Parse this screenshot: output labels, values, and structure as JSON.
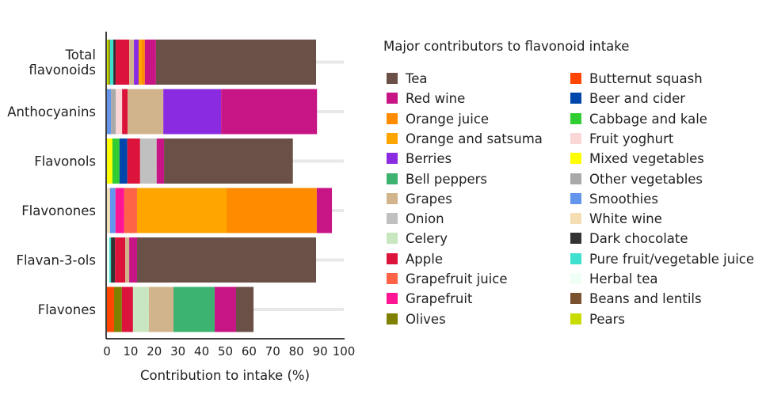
{
  "chart_data": {
    "type": "bar",
    "orientation": "horizontal",
    "stacked": true,
    "xlabel": "Contribution to intake (%)",
    "xlim": [
      0,
      100
    ],
    "xticks": [
      0,
      10,
      20,
      30,
      40,
      50,
      60,
      70,
      80,
      90,
      100
    ],
    "categories": [
      [
        "Total",
        "flavonoids"
      ],
      [
        "Anthocyanins"
      ],
      [
        "Flavonols"
      ],
      [
        "Flavonones"
      ],
      [
        "Flavan-3-ols"
      ],
      [
        "Flavones"
      ]
    ],
    "bars": [
      [
        [
          "Pears",
          0.7
        ],
        [
          "Olives",
          0.6
        ],
        [
          "Pure fruit/vegetable juice",
          1.4
        ],
        [
          "Dark chocolate",
          1.0
        ],
        [
          "Apple",
          5.7
        ],
        [
          "Grapes",
          2.0
        ],
        [
          "Berries",
          2.0
        ],
        [
          "Orange and satsuma",
          1.3
        ],
        [
          "Orange juice",
          1.3
        ],
        [
          "Red wine",
          4.7
        ],
        [
          "Tea",
          67.6
        ]
      ],
      [
        [
          "Smoothies",
          1.7
        ],
        [
          "Other vegetables",
          2.0
        ],
        [
          "Fruit yoghurt",
          2.7
        ],
        [
          "Apple",
          2.3
        ],
        [
          "Grapes",
          15.1
        ],
        [
          "Berries",
          24.4
        ],
        [
          "Red wine",
          40.5
        ]
      ],
      [
        [
          "Mixed vegetables",
          2.3
        ],
        [
          "Cabbage and kale",
          3.0
        ],
        [
          "Beer and cider",
          3.3
        ],
        [
          "Apple",
          5.4
        ],
        [
          "Onion",
          7.0
        ],
        [
          "Red wine",
          3.1
        ],
        [
          "Tea",
          54.4
        ]
      ],
      [
        [
          "White wine",
          1.3
        ],
        [
          "Smoothies",
          2.3
        ],
        [
          "Grapefruit",
          3.7
        ],
        [
          "Grapefruit juice",
          5.4
        ],
        [
          "Orange and satsuma",
          37.8
        ],
        [
          "Orange juice",
          38.1
        ],
        [
          "Red wine",
          6.4
        ]
      ],
      [
        [
          "Herbal tea",
          1.0
        ],
        [
          "Pure fruit/vegetable juice",
          0.7
        ],
        [
          "Dark chocolate",
          1.7
        ],
        [
          "Apple",
          4.3
        ],
        [
          "Grapes",
          1.7
        ],
        [
          "Red wine",
          3.3
        ],
        [
          "Tea",
          75.6
        ]
      ],
      [
        [
          "Butternut squash",
          3.0
        ],
        [
          "Olives",
          3.3
        ],
        [
          "Apple",
          4.7
        ],
        [
          "Celery",
          6.7
        ],
        [
          "Grapes",
          10.4
        ],
        [
          "Bell peppers",
          17.4
        ],
        [
          "Red wine",
          9.0
        ],
        [
          "Tea",
          7.4
        ]
      ]
    ],
    "legend_title": "Major contributors to flavonoid intake",
    "legend": [
      [
        "Tea",
        "#6b5047"
      ],
      [
        "Red wine",
        "#c71585"
      ],
      [
        "Orange juice",
        "#ff8c00"
      ],
      [
        "Orange and satsuma",
        "#ffa500"
      ],
      [
        "Berries",
        "#8a2be2"
      ],
      [
        "Bell peppers",
        "#3cb371"
      ],
      [
        "Grapes",
        "#d2b48c"
      ],
      [
        "Onion",
        "#c0c0c0"
      ],
      [
        "Celery",
        "#c8e6c0"
      ],
      [
        "Apple",
        "#dc143c"
      ],
      [
        "Grapefruit juice",
        "#ff6347"
      ],
      [
        "Grapefruit",
        "#ff1493"
      ],
      [
        "Olives",
        "#808000"
      ],
      [
        "Butternut squash",
        "#ff4500"
      ],
      [
        "Beer and cider",
        "#0047ab"
      ],
      [
        "Cabbage and kale",
        "#32cd32"
      ],
      [
        "Fruit yoghurt",
        "#fad6d6"
      ],
      [
        "Mixed vegetables",
        "#ffff00"
      ],
      [
        "Other vegetables",
        "#a9a9a9"
      ],
      [
        "Smoothies",
        "#6495ed"
      ],
      [
        "White wine",
        "#f5deb3"
      ],
      [
        "Dark chocolate",
        "#333333"
      ],
      [
        "Pure fruit/vegetable juice",
        "#40e0d0"
      ],
      [
        "Herbal tea",
        "#f0fff5"
      ],
      [
        "Beans and lentils",
        "#7a5230"
      ],
      [
        "Pears",
        "#c8dc00"
      ]
    ],
    "legend_placement": "right"
  }
}
